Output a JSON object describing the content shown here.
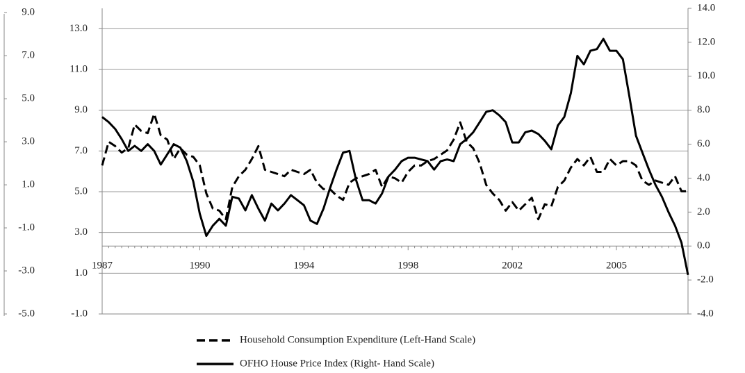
{
  "chart_data": {
    "type": "line",
    "categories": [
      "1987",
      null,
      null,
      null,
      null,
      null,
      null,
      null,
      null,
      null,
      null,
      null,
      null,
      null,
      null,
      "1990",
      null,
      null,
      null,
      null,
      null,
      null,
      null,
      null,
      null,
      null,
      null,
      null,
      null,
      null,
      null,
      "1994",
      null,
      null,
      null,
      null,
      null,
      null,
      null,
      null,
      null,
      null,
      null,
      null,
      null,
      null,
      null,
      "1998",
      null,
      null,
      null,
      null,
      null,
      null,
      null,
      null,
      null,
      null,
      null,
      null,
      null,
      null,
      null,
      "2002",
      null,
      null,
      null,
      null,
      null,
      null,
      null,
      null,
      null,
      null,
      null,
      null,
      null,
      null,
      null,
      "2005",
      null,
      null,
      null,
      null,
      null,
      null,
      null,
      null,
      null,
      null,
      null
    ],
    "series": [
      {
        "name": "Household Consumption Expenditure (Left-Hand Scale)",
        "color": "#000000",
        "line_style": "dashed",
        "axis": "y",
        "values": [
          1.9,
          3.0,
          2.8,
          2.5,
          2.7,
          3.8,
          3.5,
          3.4,
          4.3,
          3.3,
          3.1,
          2.2,
          2.7,
          2.4,
          2.3,
          1.9,
          0.6,
          -0.1,
          -0.2,
          -0.6,
          0.9,
          1.4,
          1.7,
          2.2,
          2.8,
          1.7,
          1.6,
          1.5,
          1.4,
          1.7,
          1.6,
          1.5,
          1.7,
          1.1,
          0.8,
          0.8,
          0.5,
          0.3,
          1.1,
          1.3,
          1.4,
          1.5,
          1.7,
          0.9,
          1.4,
          1.3,
          1.1,
          1.6,
          1.9,
          1.9,
          2.1,
          2.2,
          2.4,
          2.6,
          3.1,
          3.9,
          3.0,
          2.7,
          2.0,
          1.0,
          0.6,
          0.3,
          -0.2,
          0.2,
          -0.2,
          0.1,
          0.4,
          -0.6,
          0.1,
          0.0,
          0.9,
          1.2,
          1.8,
          2.2,
          1.9,
          2.3,
          1.6,
          1.6,
          2.2,
          1.9,
          2.1,
          2.1,
          1.9,
          1.2,
          1.0,
          1.2,
          1.1,
          1.0,
          1.4,
          0.7,
          0.7
        ]
      },
      {
        "name": "OFHO House Price Index (Right- Hand Scale)",
        "color": "#000000",
        "line_style": "solid",
        "axis": "y2",
        "values": [
          7.6,
          7.3,
          6.9,
          6.3,
          5.6,
          5.9,
          5.6,
          6.0,
          5.6,
          4.8,
          5.4,
          6.0,
          5.8,
          5.0,
          3.8,
          1.9,
          0.6,
          1.2,
          1.6,
          1.2,
          2.9,
          2.8,
          2.1,
          3.0,
          2.2,
          1.5,
          2.5,
          2.1,
          2.5,
          3.0,
          2.7,
          2.4,
          1.5,
          1.3,
          2.2,
          3.4,
          4.5,
          5.5,
          5.6,
          3.9,
          2.7,
          2.7,
          2.5,
          3.1,
          4.1,
          4.5,
          5.0,
          5.2,
          5.2,
          5.1,
          5.0,
          4.5,
          5.0,
          5.1,
          5.0,
          6.0,
          6.3,
          6.7,
          7.3,
          7.9,
          8.0,
          7.7,
          7.3,
          6.1,
          6.1,
          6.7,
          6.8,
          6.6,
          6.2,
          5.7,
          7.1,
          7.6,
          9.0,
          11.2,
          10.7,
          11.5,
          11.6,
          12.2,
          11.5,
          11.5,
          11.0,
          8.8,
          6.5,
          5.5,
          4.5,
          3.6,
          2.9,
          2.0,
          1.2,
          0.2,
          -1.7
        ]
      }
    ],
    "ylim": [
      -5,
      9.2
    ],
    "yticks": [
      {
        "value": 9,
        "label": "9.0"
      },
      {
        "value": 7,
        "label": "7.0"
      },
      {
        "value": 5,
        "label": "5.0"
      },
      {
        "value": 3,
        "label": "3.0"
      },
      {
        "value": 1,
        "label": "1.0"
      },
      {
        "value": -1,
        "label": "-1.0"
      },
      {
        "value": -3,
        "label": "-3.0"
      },
      {
        "value": -5,
        "label": "-5.0"
      }
    ],
    "y3lim": [
      -1,
      14
    ],
    "y3ticks": [
      {
        "value": 13,
        "label": "13.0"
      },
      {
        "value": 11,
        "label": "11.0"
      },
      {
        "value": 9,
        "label": "9.0"
      },
      {
        "value": 7,
        "label": "7.0"
      },
      {
        "value": 5,
        "label": "5.0"
      },
      {
        "value": 3,
        "label": "3.0"
      },
      {
        "value": 1,
        "label": "1.0"
      },
      {
        "value": -1,
        "label": "-1.0"
      }
    ],
    "y2lim": [
      -4,
      14
    ],
    "y2ticks": [
      {
        "value": 14,
        "label": "14.0"
      },
      {
        "value": 12,
        "label": "12.0"
      },
      {
        "value": 10,
        "label": "10.0"
      },
      {
        "value": 8,
        "label": "8.0"
      },
      {
        "value": 6,
        "label": "6.0"
      },
      {
        "value": 4,
        "label": "4.0"
      },
      {
        "value": 2,
        "label": "2.0"
      },
      {
        "value": 0,
        "label": "0.0"
      },
      {
        "value": -2,
        "label": "-2.0"
      },
      {
        "value": -4,
        "label": "-4.0"
      }
    ],
    "grid": true,
    "legend": "bottom"
  }
}
